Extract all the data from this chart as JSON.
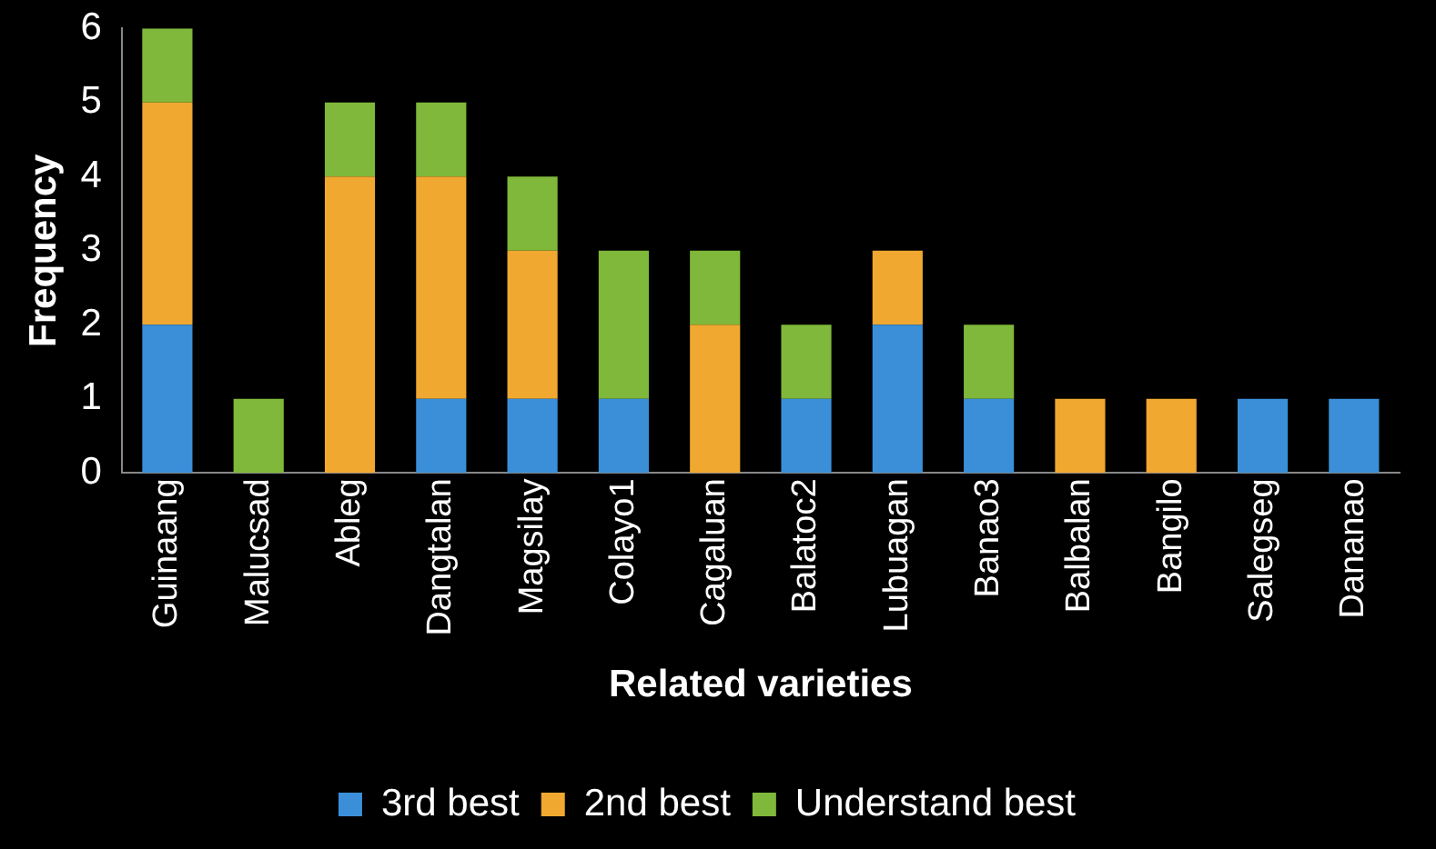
{
  "chart_data": {
    "type": "bar",
    "stacked": true,
    "xlabel": "Related varieties",
    "ylabel": "Frequency",
    "categories": [
      "Guinaang",
      "Malucsad",
      "Ableg",
      "Dangtalan",
      "Magsilay",
      "Colayo1",
      "Cagaluan",
      "Balatoc2",
      "Lubuagan",
      "Banao3",
      "Balbalan",
      "Bangilo",
      "Salegseg",
      "Dananao"
    ],
    "series": [
      {
        "name": "3rd best",
        "color": "#3a8fd8",
        "values": [
          2,
          0,
          0,
          1,
          1,
          1,
          0,
          1,
          2,
          1,
          0,
          0,
          1,
          1
        ]
      },
      {
        "name": "2nd best",
        "color": "#f0a830",
        "values": [
          3,
          0,
          4,
          3,
          2,
          0,
          2,
          0,
          1,
          0,
          1,
          1,
          0,
          0
        ]
      },
      {
        "name": "Understand best",
        "color": "#7fb83a",
        "values": [
          1,
          1,
          1,
          1,
          1,
          2,
          1,
          1,
          0,
          1,
          0,
          0,
          0,
          0
        ]
      }
    ],
    "ylim": [
      0,
      6
    ],
    "yticks": [
      0,
      1,
      2,
      3,
      4,
      5,
      6
    ],
    "grid": false,
    "legend": "bottom"
  }
}
